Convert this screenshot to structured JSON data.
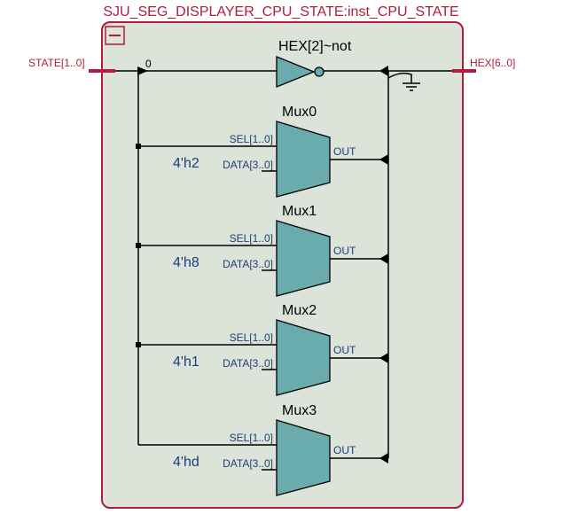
{
  "module": {
    "title": "SJU_SEG_DISPLAYER_CPU_STATE:inst_CPU_STATE",
    "collapse_icon": "minus-box-icon"
  },
  "ports": {
    "input": "STATE[1..0]",
    "output": "HEX[6..0]",
    "bus_index": "0"
  },
  "inverter": {
    "name": "HEX[2]~not"
  },
  "muxes": [
    {
      "name": "Mux0",
      "sel": "SEL[1..0]",
      "data": "DATA[3..0]",
      "out": "OUT",
      "const": "4'h2"
    },
    {
      "name": "Mux1",
      "sel": "SEL[1..0]",
      "data": "DATA[3..0]",
      "out": "OUT",
      "const": "4'h8"
    },
    {
      "name": "Mux2",
      "sel": "SEL[1..0]",
      "data": "DATA[3..0]",
      "out": "OUT",
      "const": "4'h1"
    },
    {
      "name": "Mux3",
      "sel": "SEL[1..0]",
      "data": "DATA[3..0]",
      "out": "OUT",
      "const": "4'hd"
    }
  ],
  "colors": {
    "border": "#b01c3a",
    "module_fill": "#dce3d8",
    "mux_fill": "#6aacad",
    "wire": "#000000",
    "label_blue": "#1b3e7a",
    "port_text": "#b01c3a"
  }
}
